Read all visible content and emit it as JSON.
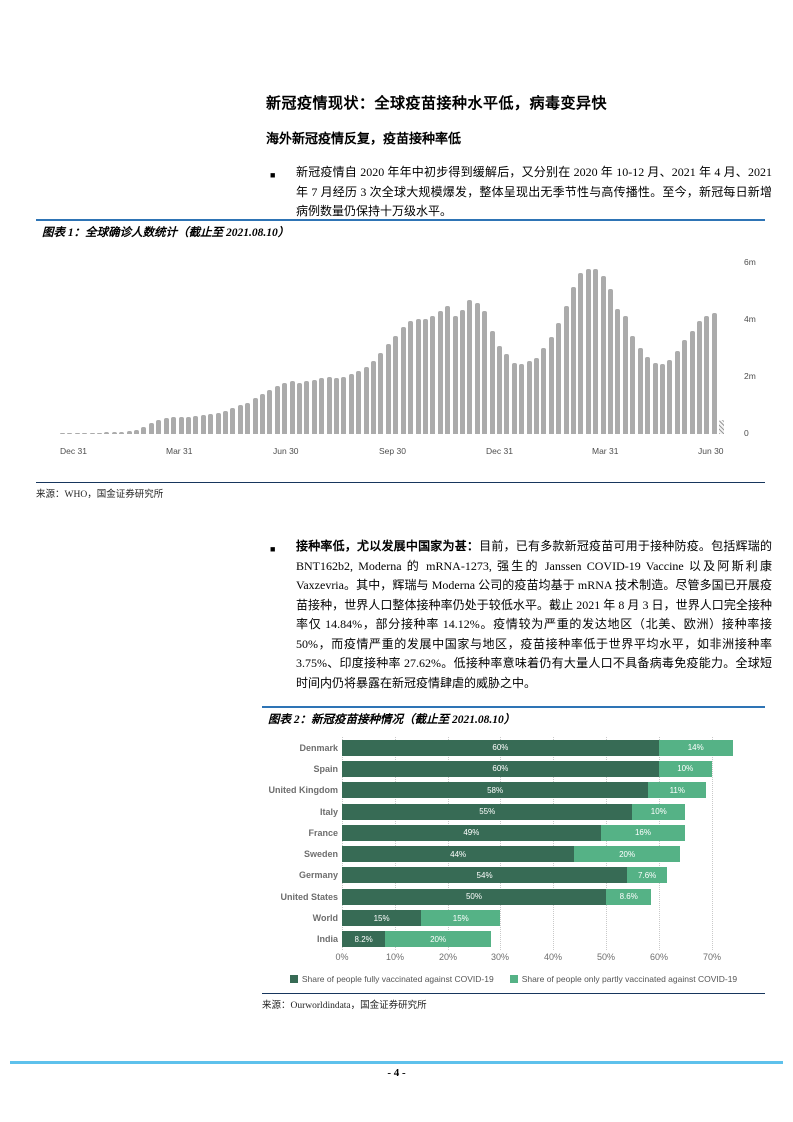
{
  "page": {
    "number_label": "- 4 -"
  },
  "section": {
    "heading": "新冠疫情现状：全球疫苗接种水平低，病毒变异快",
    "subheading": "海外新冠疫情反复，疫苗接种率低",
    "bullets": [
      {
        "marker": "■",
        "text": "新冠疫情自 2020 年年中初步得到缓解后，又分别在 2020 年 10-12 月、2021 年 4 月、2021 年 7 月经历 3 次全球大规模爆发，整体呈现出无季节性与高传播性。至今，新冠每日新增病例数量仍保持十万级水平。"
      },
      {
        "marker": "■",
        "lead": "接种率低，尤以发展中国家为甚：",
        "text": "目前，已有多款新冠疫苗可用于接种防疫。包括辉瑞的 BNT162b2, Moderna 的 mRNA-1273, 强生的 Janssen COVID-19 Vaccine 以及阿斯利康 Vaxzevria。其中，辉瑞与 Moderna 公司的疫苗均基于 mRNA 技术制造。尽管多国已开展疫苗接种，世界人口整体接种率仍处于较低水平。截止 2021 年 8 月 3 日，世界人口完全接种率仅 14.84%，部分接种率 14.12%。疫情较为严重的发达地区（北美、欧洲）接种率接 50%，而疫情严重的发展中国家与地区，疫苗接种率低于世界平均水平，如非洲接种率 3.75%、印度接种率 27.62%。低接种率意味着仍有大量人口不具备病毒免疫能力。全球短时间内仍将暴露在新冠疫情肆虐的威胁之中。"
      }
    ]
  },
  "figure1": {
    "title": "图表 1：全球确诊人数统计（截止至 2021.08.10）",
    "source": "来源：WHO，国金证券研究所"
  },
  "figure2": {
    "title": "图表 2：新冠疫苗接种情况（截止至 2021.08.10）",
    "source": "来源：Ourworldindata，国金证券研究所"
  },
  "chart_data": [
    {
      "type": "bar",
      "title": "全球确诊人数统计（截止至 2021.08.10）",
      "description": "Weekly new confirmed COVID-19 cases worldwide, millions",
      "x_tick_labels": [
        "Dec 31",
        "Mar 31",
        "Jun 30",
        "Sep 30",
        "Dec 31",
        "Mar 31",
        "Jun 30"
      ],
      "y_tick_labels": [
        "0",
        "2m",
        "4m",
        "6m"
      ],
      "ylim": [
        0,
        6.67
      ],
      "bar_color": "#ababab",
      "last_bar_hatched": true,
      "values_millions": [
        0.004,
        0.01,
        0.03,
        0.045,
        0.05,
        0.05,
        0.055,
        0.06,
        0.07,
        0.09,
        0.13,
        0.25,
        0.4,
        0.5,
        0.56,
        0.6,
        0.6,
        0.61,
        0.63,
        0.66,
        0.7,
        0.75,
        0.82,
        0.9,
        1.0,
        1.1,
        1.25,
        1.4,
        1.55,
        1.7,
        1.8,
        1.85,
        1.8,
        1.85,
        1.9,
        1.95,
        2.0,
        1.95,
        2.0,
        2.1,
        2.2,
        2.35,
        2.55,
        2.85,
        3.15,
        3.45,
        3.75,
        3.95,
        4.05,
        4.05,
        4.15,
        4.3,
        4.5,
        4.15,
        4.35,
        4.7,
        4.6,
        4.3,
        3.6,
        3.1,
        2.8,
        2.5,
        2.45,
        2.55,
        2.65,
        3.0,
        3.4,
        3.9,
        4.5,
        5.15,
        5.65,
        5.78,
        5.78,
        5.55,
        5.1,
        4.4,
        4.15,
        3.45,
        3.0,
        2.7,
        2.5,
        2.45,
        2.6,
        2.9,
        3.3,
        3.6,
        3.95,
        4.15,
        4.25,
        0.5
      ]
    },
    {
      "type": "bar",
      "subtype": "horizontal-stacked",
      "title": "新冠疫苗接种情况（截止至 2021.08.10）",
      "categories": [
        "Denmark",
        "Spain",
        "United Kingdom",
        "Italy",
        "France",
        "Sweden",
        "Germany",
        "United States",
        "World",
        "India"
      ],
      "series": [
        {
          "name": "Share of people fully vaccinated against COVID-19",
          "color": "#376b55",
          "values": [
            60,
            60,
            58,
            55,
            49,
            44,
            54,
            50,
            15,
            8.2
          ],
          "labels": [
            "60%",
            "60%",
            "58%",
            "55%",
            "49%",
            "44%",
            "54%",
            "50%",
            "15%",
            "8.2%"
          ]
        },
        {
          "name": "Share of people only partly vaccinated against COVID-19",
          "color": "#55b286",
          "values": [
            14,
            10,
            11,
            10,
            16,
            20,
            7.6,
            8.6,
            15,
            20
          ],
          "labels": [
            "14%",
            "10%",
            "11%",
            "10%",
            "16%",
            "20%",
            "7.6%",
            "8.6%",
            "15%",
            "20%"
          ]
        }
      ],
      "x_tick_labels": [
        "0%",
        "10%",
        "20%",
        "30%",
        "40%",
        "50%",
        "60%",
        "70%"
      ],
      "xlim": [
        0,
        79.5
      ],
      "grid": "vertical-dotted",
      "legend_position": "bottom"
    }
  ]
}
